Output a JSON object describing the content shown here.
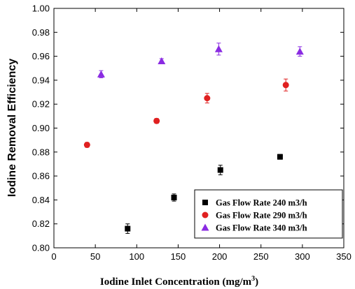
{
  "chart_data": {
    "type": "scatter",
    "xlabel": "Iodine Inlet Concentration (mg/m",
    "xlabel_sup": "3",
    "xlabel_end": ")",
    "ylabel": "Iodine Removal Efficiency",
    "xlim": [
      0,
      350
    ],
    "ylim": [
      0.8,
      1.0
    ],
    "xticks": [
      0,
      50,
      100,
      150,
      200,
      250,
      300,
      350
    ],
    "yticks": [
      0.8,
      0.82,
      0.84,
      0.86,
      0.88,
      0.9,
      0.92,
      0.94,
      0.96,
      0.98,
      1.0
    ],
    "ytick_labels": [
      "0.80",
      "0.82",
      "0.84",
      "0.86",
      "0.88",
      "0.90",
      "0.92",
      "0.94",
      "0.96",
      "0.98",
      "1.00"
    ],
    "grid": false,
    "legend_position": "bottom-right",
    "series": [
      {
        "name": "Gas Flow Rate 240 m3/h",
        "marker": "square",
        "color": "#000000",
        "x": [
          89,
          145,
          201,
          273
        ],
        "y": [
          0.816,
          0.842,
          0.865,
          0.876
        ],
        "err": [
          0.004,
          0.003,
          0.004,
          0.002
        ]
      },
      {
        "name": "Gas Flow Rate 290 m3/h",
        "marker": "circle",
        "color": "#e02020",
        "x": [
          40,
          124,
          185,
          280
        ],
        "y": [
          0.886,
          0.906,
          0.925,
          0.936
        ],
        "err": [
          0.002,
          0.002,
          0.004,
          0.005
        ]
      },
      {
        "name": "Gas Flow Rate 340 m3/h",
        "marker": "triangle",
        "color": "#8a2be2",
        "x": [
          57,
          130,
          199,
          297
        ],
        "y": [
          0.945,
          0.956,
          0.966,
          0.964
        ],
        "err": [
          0.003,
          0.002,
          0.005,
          0.004
        ]
      }
    ]
  }
}
